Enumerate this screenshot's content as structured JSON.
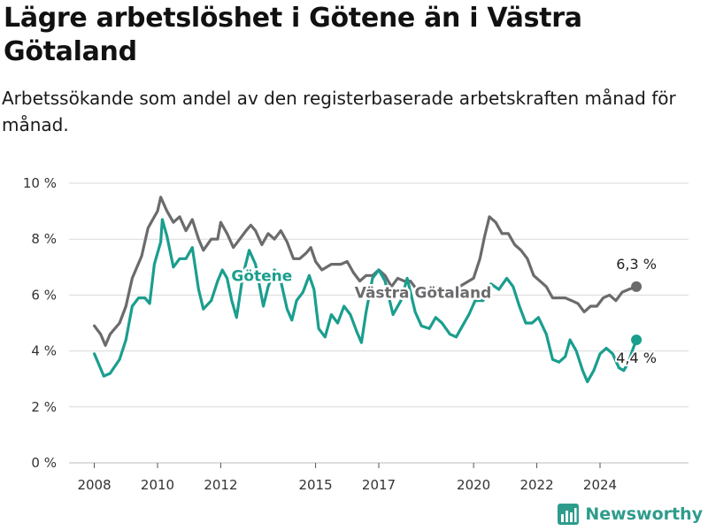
{
  "title": "Lägre arbetslöshet i Götene än i Västra Götaland",
  "subtitle": "Arbetssökande som andel av den registerbaserade arbetskraften månad för månad.",
  "brand": "Newsworthy",
  "colors": {
    "gotene": "#1a9e8e",
    "vg": "#6b6b6e",
    "grid": "#d9d9d9",
    "axis": "#333333"
  },
  "chart_data": {
    "type": "line",
    "xlim": [
      2007.2,
      2026.8
    ],
    "ylim": [
      0,
      10
    ],
    "y_ticks": [
      0,
      2,
      4,
      6,
      8,
      10
    ],
    "y_tick_labels": [
      "0 %",
      "2 %",
      "4 %",
      "6 %",
      "8 %",
      "10 %"
    ],
    "x_ticks": [
      2008,
      2010,
      2012,
      2015,
      2017,
      2020,
      2022,
      2024
    ],
    "x_tick_labels": [
      "2008",
      "2010",
      "2012",
      "2015",
      "2017",
      "2020",
      "2022",
      "2024"
    ],
    "grid": "horizontal",
    "series": [
      {
        "name": "Götene",
        "color": "#1a9e8e",
        "end_label": "4,4 %",
        "points": [
          [
            2008.0,
            3.9
          ],
          [
            2008.3,
            3.1
          ],
          [
            2008.5,
            3.2
          ],
          [
            2008.8,
            3.7
          ],
          [
            2009.0,
            4.4
          ],
          [
            2009.2,
            5.6
          ],
          [
            2009.4,
            5.9
          ],
          [
            2009.6,
            5.9
          ],
          [
            2009.75,
            5.7
          ],
          [
            2009.9,
            7.1
          ],
          [
            2010.1,
            7.9
          ],
          [
            2010.15,
            8.7
          ],
          [
            2010.3,
            8.1
          ],
          [
            2010.5,
            7.0
          ],
          [
            2010.7,
            7.3
          ],
          [
            2010.9,
            7.3
          ],
          [
            2011.1,
            7.7
          ],
          [
            2011.3,
            6.2
          ],
          [
            2011.45,
            5.5
          ],
          [
            2011.7,
            5.8
          ],
          [
            2011.9,
            6.5
          ],
          [
            2012.05,
            6.9
          ],
          [
            2012.2,
            6.6
          ],
          [
            2012.35,
            5.8
          ],
          [
            2012.5,
            5.2
          ],
          [
            2012.7,
            6.7
          ],
          [
            2012.9,
            7.6
          ],
          [
            2013.1,
            7.1
          ],
          [
            2013.35,
            5.6
          ],
          [
            2013.5,
            6.3
          ],
          [
            2013.7,
            6.9
          ],
          [
            2013.9,
            6.5
          ],
          [
            2014.1,
            5.5
          ],
          [
            2014.25,
            5.1
          ],
          [
            2014.4,
            5.8
          ],
          [
            2014.6,
            6.1
          ],
          [
            2014.8,
            6.7
          ],
          [
            2014.95,
            6.2
          ],
          [
            2015.1,
            4.8
          ],
          [
            2015.3,
            4.5
          ],
          [
            2015.5,
            5.3
          ],
          [
            2015.7,
            5.0
          ],
          [
            2015.9,
            5.6
          ],
          [
            2016.1,
            5.3
          ],
          [
            2016.3,
            4.7
          ],
          [
            2016.45,
            4.3
          ],
          [
            2016.6,
            5.4
          ],
          [
            2016.8,
            6.6
          ],
          [
            2017.0,
            6.9
          ],
          [
            2017.2,
            6.5
          ],
          [
            2017.45,
            5.3
          ],
          [
            2017.7,
            5.8
          ],
          [
            2017.9,
            6.6
          ],
          [
            2018.15,
            5.4
          ],
          [
            2018.35,
            4.9
          ],
          [
            2018.6,
            4.8
          ],
          [
            2018.8,
            5.2
          ],
          [
            2019.0,
            5.0
          ],
          [
            2019.25,
            4.6
          ],
          [
            2019.45,
            4.5
          ],
          [
            2019.65,
            4.9
          ],
          [
            2019.85,
            5.3
          ],
          [
            2020.05,
            5.8
          ],
          [
            2020.3,
            5.8
          ],
          [
            2020.55,
            6.4
          ],
          [
            2020.8,
            6.2
          ],
          [
            2021.05,
            6.6
          ],
          [
            2021.25,
            6.3
          ],
          [
            2021.45,
            5.6
          ],
          [
            2021.65,
            5.0
          ],
          [
            2021.85,
            5.0
          ],
          [
            2022.05,
            5.2
          ],
          [
            2022.3,
            4.6
          ],
          [
            2022.5,
            3.7
          ],
          [
            2022.7,
            3.6
          ],
          [
            2022.9,
            3.8
          ],
          [
            2023.05,
            4.4
          ],
          [
            2023.25,
            4.0
          ],
          [
            2023.45,
            3.3
          ],
          [
            2023.6,
            2.9
          ],
          [
            2023.8,
            3.3
          ],
          [
            2024.0,
            3.9
          ],
          [
            2024.2,
            4.1
          ],
          [
            2024.4,
            3.9
          ],
          [
            2024.6,
            3.4
          ],
          [
            2024.75,
            3.3
          ],
          [
            2024.9,
            3.6
          ],
          [
            2025.05,
            4.1
          ],
          [
            2025.15,
            4.4
          ]
        ]
      },
      {
        "name": "Västra Götaland",
        "color": "#6b6b6e",
        "end_label": "6,3 %",
        "points": [
          [
            2008.0,
            4.9
          ],
          [
            2008.2,
            4.6
          ],
          [
            2008.35,
            4.2
          ],
          [
            2008.5,
            4.6
          ],
          [
            2008.8,
            5.0
          ],
          [
            2009.0,
            5.6
          ],
          [
            2009.2,
            6.6
          ],
          [
            2009.5,
            7.4
          ],
          [
            2009.7,
            8.4
          ],
          [
            2009.9,
            8.8
          ],
          [
            2010.0,
            9.0
          ],
          [
            2010.1,
            9.5
          ],
          [
            2010.3,
            9.0
          ],
          [
            2010.5,
            8.6
          ],
          [
            2010.7,
            8.8
          ],
          [
            2010.9,
            8.3
          ],
          [
            2011.1,
            8.7
          ],
          [
            2011.3,
            8.0
          ],
          [
            2011.45,
            7.6
          ],
          [
            2011.7,
            8.0
          ],
          [
            2011.9,
            8.0
          ],
          [
            2012.0,
            8.6
          ],
          [
            2012.2,
            8.2
          ],
          [
            2012.4,
            7.7
          ],
          [
            2012.6,
            8.0
          ],
          [
            2012.8,
            8.3
          ],
          [
            2012.95,
            8.5
          ],
          [
            2013.1,
            8.3
          ],
          [
            2013.3,
            7.8
          ],
          [
            2013.5,
            8.2
          ],
          [
            2013.7,
            8.0
          ],
          [
            2013.9,
            8.3
          ],
          [
            2014.1,
            7.9
          ],
          [
            2014.3,
            7.3
          ],
          [
            2014.5,
            7.3
          ],
          [
            2014.7,
            7.5
          ],
          [
            2014.85,
            7.7
          ],
          [
            2015.0,
            7.2
          ],
          [
            2015.2,
            6.9
          ],
          [
            2015.5,
            7.1
          ],
          [
            2015.8,
            7.1
          ],
          [
            2016.0,
            7.2
          ],
          [
            2016.2,
            6.8
          ],
          [
            2016.4,
            6.5
          ],
          [
            2016.6,
            6.7
          ],
          [
            2016.8,
            6.7
          ],
          [
            2017.0,
            6.9
          ],
          [
            2017.2,
            6.7
          ],
          [
            2017.4,
            6.3
          ],
          [
            2017.6,
            6.6
          ],
          [
            2017.8,
            6.5
          ],
          [
            2018.0,
            6.5
          ],
          [
            2018.2,
            6.2
          ],
          [
            2018.5,
            6.2
          ],
          [
            2018.8,
            6.3
          ],
          [
            2019.1,
            6.0
          ],
          [
            2019.4,
            6.2
          ],
          [
            2019.7,
            6.4
          ],
          [
            2020.0,
            6.6
          ],
          [
            2020.2,
            7.3
          ],
          [
            2020.35,
            8.1
          ],
          [
            2020.5,
            8.8
          ],
          [
            2020.7,
            8.6
          ],
          [
            2020.9,
            8.2
          ],
          [
            2021.1,
            8.2
          ],
          [
            2021.3,
            7.8
          ],
          [
            2021.5,
            7.6
          ],
          [
            2021.7,
            7.3
          ],
          [
            2021.9,
            6.7
          ],
          [
            2022.1,
            6.5
          ],
          [
            2022.3,
            6.3
          ],
          [
            2022.5,
            5.9
          ],
          [
            2022.7,
            5.9
          ],
          [
            2022.9,
            5.9
          ],
          [
            2023.1,
            5.8
          ],
          [
            2023.3,
            5.7
          ],
          [
            2023.5,
            5.4
          ],
          [
            2023.7,
            5.6
          ],
          [
            2023.9,
            5.6
          ],
          [
            2024.1,
            5.9
          ],
          [
            2024.3,
            6.0
          ],
          [
            2024.5,
            5.8
          ],
          [
            2024.7,
            6.1
          ],
          [
            2024.9,
            6.2
          ],
          [
            2025.15,
            6.3
          ]
        ]
      }
    ]
  }
}
